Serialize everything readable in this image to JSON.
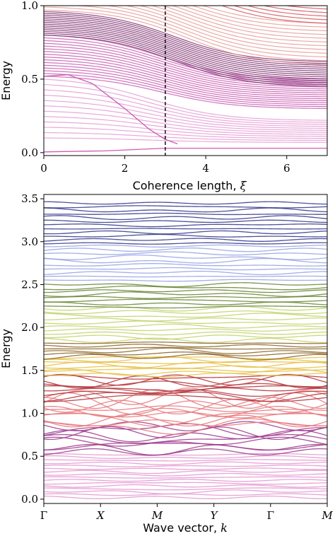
{
  "chart_data": [
    {
      "type": "line",
      "xlabel": "Coherence length, ",
      "xlabel_symbol": "ξ",
      "ylabel": "Energy",
      "xlim": [
        0,
        7
      ],
      "ylim": [
        -0.02,
        1.0
      ],
      "xticks": [
        0,
        2,
        4,
        6
      ],
      "yticks": [
        0.0,
        0.5,
        1.0
      ],
      "xtick_labels": [
        "0",
        "2",
        "4",
        "6"
      ],
      "ytick_labels": [
        "0.0",
        "0.5",
        "1.0"
      ],
      "vline_x": 3.0,
      "grid": false,
      "legend": "none",
      "bands": [
        {
          "color": "#e59ad3",
          "count": 12,
          "e0_min": 0.1,
          "e0_max": 0.5,
          "e7_min": 0.07,
          "e7_max": 0.22,
          "decay": 2.6
        },
        {
          "color": "#c85bb0",
          "count": 16,
          "e0_min": 0.52,
          "e0_max": 0.8,
          "e7_min": 0.3,
          "e7_max": 0.5,
          "decay": 2.9
        },
        {
          "color": "#7c2e6f",
          "count": 14,
          "e0_min": 0.8,
          "e0_max": 0.96,
          "e7_min": 0.45,
          "e7_max": 0.62,
          "decay": 3.2
        },
        {
          "color": "#e69c96",
          "count": 12,
          "e0_min": 0.97,
          "e0_max": 1.2,
          "e7_min": 0.6,
          "e7_max": 0.88,
          "decay": 3.5
        },
        {
          "color": "#d4545c",
          "count": 8,
          "e0_min": 1.25,
          "e0_max": 1.5,
          "e7_min": 0.88,
          "e7_max": 1.05,
          "decay": 3.8
        }
      ],
      "special_lines": [
        {
          "color": "#d35ab5",
          "points": [
            [
              0,
              0.005
            ],
            [
              1.5,
              0.012
            ],
            [
              3.0,
              0.03
            ],
            [
              7.0,
              0.03
            ]
          ]
        },
        {
          "color": "#c85bb0",
          "points": [
            [
              0,
              0.52
            ],
            [
              0.6,
              0.53
            ],
            [
              1.2,
              0.47
            ],
            [
              2.0,
              0.3
            ],
            [
              2.6,
              0.16
            ],
            [
              3.0,
              0.09
            ],
            [
              3.3,
              0.06
            ]
          ]
        }
      ]
    },
    {
      "type": "line",
      "xlabel": "Wave vector, ",
      "xlabel_symbol": "k",
      "ylabel": "Energy",
      "categories": [
        "Γ",
        "X",
        "M",
        "Y",
        "Γ",
        "M"
      ],
      "ylim": [
        -0.05,
        3.55
      ],
      "yticks": [
        0.0,
        0.5,
        1.0,
        1.5,
        2.0,
        2.5,
        3.0,
        3.5
      ],
      "ytick_labels": [
        "0.0",
        "0.5",
        "1.0",
        "1.5",
        "2.0",
        "2.5",
        "3.0",
        "3.5"
      ],
      "grid": false,
      "legend": "none",
      "bands": [
        {
          "color": "#e59ad3",
          "e_min": 0.02,
          "e_max": 0.52,
          "count": 16,
          "wiggle": 0.012
        },
        {
          "color": "#a03e8f",
          "e_min": 0.55,
          "e_max": 0.85,
          "count": 9,
          "wiggle": 0.05
        },
        {
          "color": "#e87b7f",
          "e_min": 0.85,
          "e_max": 1.18,
          "count": 11,
          "wiggle": 0.08
        },
        {
          "color": "#b8383f",
          "e_min": 1.18,
          "e_max": 1.42,
          "count": 9,
          "wiggle": 0.05
        },
        {
          "color": "#e8c24a",
          "e_min": 1.45,
          "e_max": 1.65,
          "count": 8,
          "wiggle": 0.025
        },
        {
          "color": "#8f6a2e",
          "e_min": 1.66,
          "e_max": 1.82,
          "count": 6,
          "wiggle": 0.02
        },
        {
          "color": "#c4d470",
          "e_min": 1.85,
          "e_max": 2.22,
          "count": 10,
          "wiggle": 0.02
        },
        {
          "color": "#6b8a3a",
          "e_min": 2.24,
          "e_max": 2.5,
          "count": 8,
          "wiggle": 0.015
        },
        {
          "color": "#9aa6e6",
          "e_min": 2.55,
          "e_max": 2.95,
          "count": 10,
          "wiggle": 0.015
        },
        {
          "color": "#3a3f8f",
          "e_min": 2.98,
          "e_max": 3.45,
          "count": 12,
          "wiggle": 0.012
        }
      ]
    }
  ]
}
